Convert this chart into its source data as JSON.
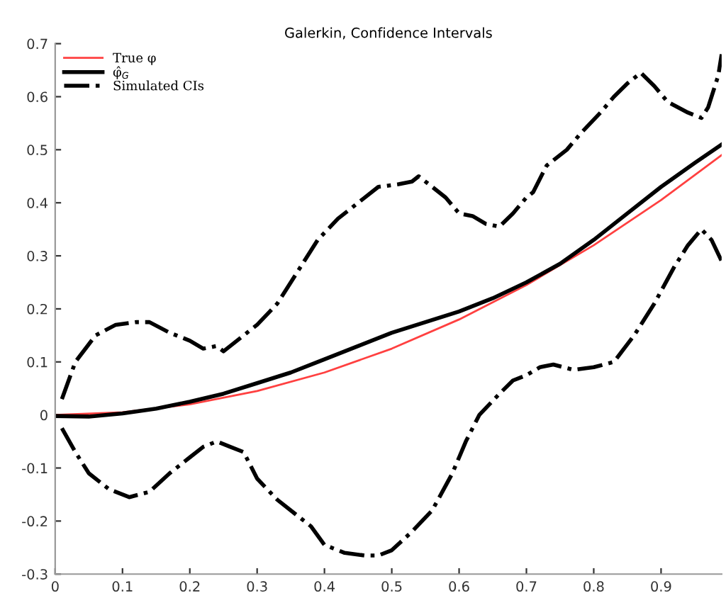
{
  "chart_data": {
    "type": "line",
    "title": "Galerkin, Confidence Intervals",
    "xlim": [
      0,
      0.99
    ],
    "ylim": [
      -0.3,
      0.7
    ],
    "xticks": [
      0,
      0.1,
      0.2,
      0.3,
      0.4,
      0.5,
      0.6,
      0.7,
      0.8,
      0.9
    ],
    "yticks": [
      -0.3,
      -0.2,
      -0.1,
      0,
      0.1,
      0.2,
      0.3,
      0.4,
      0.5,
      0.6,
      0.7
    ],
    "grid": false,
    "legend": "top left",
    "series": [
      {
        "name": "True φ",
        "color": "#ff4040",
        "line_style": "solid",
        "x": [
          0,
          0.1,
          0.2,
          0.3,
          0.4,
          0.5,
          0.6,
          0.7,
          0.8,
          0.9,
          0.99
        ],
        "values": [
          0,
          0.005,
          0.02,
          0.045,
          0.08,
          0.125,
          0.18,
          0.245,
          0.32,
          0.405,
          0.49
        ]
      },
      {
        "name": "φ̂$_{G}$",
        "color": "#000000",
        "line_style": "solid",
        "x": [
          0,
          0.05,
          0.1,
          0.15,
          0.2,
          0.25,
          0.3,
          0.35,
          0.4,
          0.45,
          0.5,
          0.55,
          0.6,
          0.65,
          0.7,
          0.75,
          0.8,
          0.85,
          0.9,
          0.95,
          0.99
        ],
        "values": [
          -0.002,
          -0.003,
          0.003,
          0.012,
          0.025,
          0.04,
          0.06,
          0.08,
          0.105,
          0.13,
          0.155,
          0.175,
          0.195,
          0.22,
          0.25,
          0.285,
          0.33,
          0.38,
          0.43,
          0.475,
          0.51
        ]
      },
      {
        "name": "Simulated CIs",
        "color": "#000000",
        "line_style": "dashdot",
        "x": [
          0.01,
          0.03,
          0.06,
          0.09,
          0.12,
          0.14,
          0.17,
          0.2,
          0.22,
          0.24,
          0.25,
          0.28,
          0.3,
          0.33,
          0.35,
          0.37,
          0.39,
          0.42,
          0.45,
          0.48,
          0.51,
          0.53,
          0.54,
          0.56,
          0.58,
          0.6,
          0.62,
          0.64,
          0.66,
          0.68,
          0.7,
          0.71,
          0.73,
          0.76,
          0.78,
          0.81,
          0.83,
          0.85,
          0.87,
          0.89,
          0.91,
          0.94,
          0.96,
          0.97,
          0.985,
          0.99
        ],
        "values": [
          0.03,
          0.1,
          0.15,
          0.17,
          0.175,
          0.175,
          0.155,
          0.14,
          0.125,
          0.13,
          0.12,
          0.15,
          0.17,
          0.21,
          0.25,
          0.29,
          0.33,
          0.37,
          0.4,
          0.43,
          0.435,
          0.44,
          0.45,
          0.43,
          0.41,
          0.38,
          0.375,
          0.36,
          0.355,
          0.38,
          0.41,
          0.42,
          0.47,
          0.5,
          0.53,
          0.57,
          0.6,
          0.625,
          0.645,
          0.62,
          0.59,
          0.57,
          0.56,
          0.58,
          0.64,
          0.68
        ]
      },
      {
        "color": "#000000",
        "line_style": "dashdot",
        "x": [
          0.01,
          0.03,
          0.05,
          0.08,
          0.11,
          0.14,
          0.17,
          0.2,
          0.22,
          0.24,
          0.26,
          0.28,
          0.3,
          0.33,
          0.36,
          0.38,
          0.4,
          0.43,
          0.46,
          0.48,
          0.5,
          0.53,
          0.56,
          0.59,
          0.61,
          0.63,
          0.66,
          0.68,
          0.7,
          0.72,
          0.74,
          0.77,
          0.8,
          0.83,
          0.86,
          0.89,
          0.92,
          0.94,
          0.96,
          0.975,
          0.99
        ],
        "values": [
          -0.025,
          -0.07,
          -0.11,
          -0.14,
          -0.155,
          -0.145,
          -0.11,
          -0.08,
          -0.06,
          -0.05,
          -0.06,
          -0.07,
          -0.12,
          -0.16,
          -0.19,
          -0.21,
          -0.245,
          -0.26,
          -0.265,
          -0.265,
          -0.255,
          -0.22,
          -0.18,
          -0.11,
          -0.05,
          0.0,
          0.04,
          0.065,
          0.075,
          0.09,
          0.095,
          0.085,
          0.09,
          0.1,
          0.15,
          0.21,
          0.28,
          0.32,
          0.35,
          0.33,
          0.29
        ]
      }
    ]
  }
}
